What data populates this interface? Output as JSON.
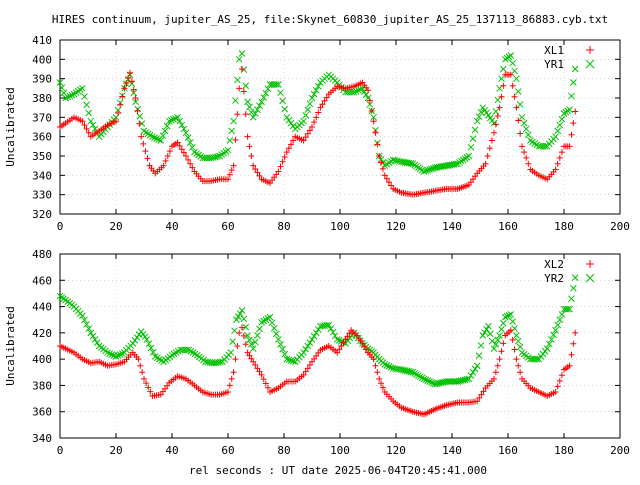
{
  "title": "HIRES continuum, jupiter_AS_25, file:Skynet_60830_jupiter_AS_25_137113_86883.cyb.txt",
  "xlabel": "rel seconds : UT date 2025-06-04T20:45:41.000",
  "colors": {
    "red": "#ff0000",
    "green": "#00c000"
  },
  "chart_data": [
    {
      "type": "scatter",
      "title": "HIRES continuum, jupiter_AS_25, file:Skynet_60830_jupiter_AS_25_137113_86883.cyb.txt",
      "xlabel": "",
      "ylabel": "Uncalibrated",
      "xlim": [
        0,
        200
      ],
      "ylim": [
        320,
        410
      ],
      "xticks": [
        0,
        20,
        40,
        60,
        80,
        100,
        120,
        140,
        160,
        180,
        200
      ],
      "yticks": [
        320,
        330,
        340,
        350,
        360,
        370,
        380,
        390,
        400,
        410
      ],
      "grid": true,
      "legend": "top-right",
      "series": [
        {
          "name": "XL1",
          "color": "#ff0000",
          "marker": "plus",
          "points": [
            [
              0,
              365
            ],
            [
              2,
              367
            ],
            [
              5,
              370
            ],
            [
              8,
              368
            ],
            [
              11,
              360
            ],
            [
              14,
              363
            ],
            [
              17,
              366
            ],
            [
              20,
              368
            ],
            [
              23,
              385
            ],
            [
              25,
              393
            ],
            [
              27,
              380
            ],
            [
              29,
              360
            ],
            [
              32,
              345
            ],
            [
              34,
              341
            ],
            [
              37,
              345
            ],
            [
              40,
              355
            ],
            [
              42,
              357
            ],
            [
              45,
              350
            ],
            [
              48,
              342
            ],
            [
              51,
              337
            ],
            [
              54,
              337
            ],
            [
              57,
              338
            ],
            [
              60,
              338
            ],
            [
              62,
              345
            ],
            [
              64,
              385
            ],
            [
              65,
              395
            ],
            [
              67,
              360
            ],
            [
              69,
              345
            ],
            [
              72,
              338
            ],
            [
              75,
              336
            ],
            [
              78,
              342
            ],
            [
              81,
              352
            ],
            [
              84,
              360
            ],
            [
              87,
              358
            ],
            [
              90,
              365
            ],
            [
              93,
              375
            ],
            [
              96,
              382
            ],
            [
              99,
              386
            ],
            [
              102,
              385
            ],
            [
              105,
              386
            ],
            [
              108,
              388
            ],
            [
              110,
              384
            ],
            [
              112,
              368
            ],
            [
              114,
              350
            ],
            [
              116,
              340
            ],
            [
              119,
              333
            ],
            [
              122,
              331
            ],
            [
              126,
              330
            ],
            [
              130,
              331
            ],
            [
              134,
              332
            ],
            [
              138,
              333
            ],
            [
              142,
              333
            ],
            [
              146,
              335
            ],
            [
              149,
              341
            ],
            [
              152,
              346
            ],
            [
              155,
              362
            ],
            [
              157,
              375
            ],
            [
              159,
              392
            ],
            [
              161,
              392
            ],
            [
              163,
              375
            ],
            [
              165,
              355
            ],
            [
              168,
              343
            ],
            [
              171,
              340
            ],
            [
              174,
              338
            ],
            [
              177,
              343
            ],
            [
              180,
              355
            ],
            [
              182,
              355
            ],
            [
              184,
              373
            ]
          ]
        },
        {
          "name": "YR1",
          "color": "#00c000",
          "marker": "cross",
          "points": [
            [
              0,
              388
            ],
            [
              2,
              380
            ],
            [
              5,
              382
            ],
            [
              8,
              385
            ],
            [
              11,
              368
            ],
            [
              14,
              360
            ],
            [
              17,
              365
            ],
            [
              20,
              370
            ],
            [
              23,
              385
            ],
            [
              25,
              392
            ],
            [
              27,
              378
            ],
            [
              30,
              363
            ],
            [
              33,
              360
            ],
            [
              36,
              358
            ],
            [
              39,
              368
            ],
            [
              42,
              370
            ],
            [
              45,
              362
            ],
            [
              48,
              352
            ],
            [
              51,
              349
            ],
            [
              54,
              349
            ],
            [
              57,
              350
            ],
            [
              60,
              353
            ],
            [
              62,
              368
            ],
            [
              64,
              400
            ],
            [
              65,
              403
            ],
            [
              67,
              378
            ],
            [
              69,
              370
            ],
            [
              72,
              378
            ],
            [
              75,
              387
            ],
            [
              78,
              387
            ],
            [
              81,
              370
            ],
            [
              84,
              364
            ],
            [
              87,
              368
            ],
            [
              90,
              380
            ],
            [
              93,
              388
            ],
            [
              96,
              392
            ],
            [
              99,
              388
            ],
            [
              102,
              383
            ],
            [
              105,
              383
            ],
            [
              108,
              385
            ],
            [
              110,
              380
            ],
            [
              112,
              370
            ],
            [
              114,
              350
            ],
            [
              116,
              345
            ],
            [
              119,
              348
            ],
            [
              122,
              347
            ],
            [
              126,
              346
            ],
            [
              130,
              342
            ],
            [
              134,
              344
            ],
            [
              138,
              345
            ],
            [
              142,
              346
            ],
            [
              146,
              350
            ],
            [
              149,
              368
            ],
            [
              151,
              375
            ],
            [
              153,
              371
            ],
            [
              155,
              367
            ],
            [
              157,
              385
            ],
            [
              159,
              400
            ],
            [
              161,
              402
            ],
            [
              163,
              390
            ],
            [
              165,
              370
            ],
            [
              168,
              358
            ],
            [
              171,
              355
            ],
            [
              174,
              355
            ],
            [
              177,
              360
            ],
            [
              180,
              372
            ],
            [
              182,
              374
            ],
            [
              184,
              395
            ]
          ]
        }
      ]
    },
    {
      "type": "scatter",
      "xlabel": "rel seconds : UT date 2025-06-04T20:45:41.000",
      "ylabel": "Uncalibrated",
      "xlim": [
        0,
        200
      ],
      "ylim": [
        340,
        480
      ],
      "xticks": [
        0,
        20,
        40,
        60,
        80,
        100,
        120,
        140,
        160,
        180,
        200
      ],
      "yticks": [
        340,
        360,
        380,
        400,
        420,
        440,
        460,
        480
      ],
      "grid": true,
      "legend": "top-right",
      "series": [
        {
          "name": "XL2",
          "color": "#ff0000",
          "marker": "plus",
          "points": [
            [
              0,
              410
            ],
            [
              2,
              408
            ],
            [
              5,
              405
            ],
            [
              8,
              400
            ],
            [
              11,
              397
            ],
            [
              14,
              398
            ],
            [
              17,
              395
            ],
            [
              20,
              396
            ],
            [
              23,
              398
            ],
            [
              26,
              405
            ],
            [
              28,
              400
            ],
            [
              30,
              385
            ],
            [
              33,
              372
            ],
            [
              36,
              373
            ],
            [
              39,
              382
            ],
            [
              42,
              387
            ],
            [
              45,
              385
            ],
            [
              48,
              380
            ],
            [
              51,
              375
            ],
            [
              54,
              373
            ],
            [
              57,
              373
            ],
            [
              60,
              375
            ],
            [
              62,
              390
            ],
            [
              64,
              420
            ],
            [
              65,
              424
            ],
            [
              67,
              405
            ],
            [
              69,
              398
            ],
            [
              72,
              388
            ],
            [
              75,
              375
            ],
            [
              78,
              378
            ],
            [
              81,
              383
            ],
            [
              84,
              383
            ],
            [
              87,
              388
            ],
            [
              90,
              398
            ],
            [
              93,
              407
            ],
            [
              96,
              410
            ],
            [
              99,
              405
            ],
            [
              102,
              415
            ],
            [
              104,
              422
            ],
            [
              106,
              418
            ],
            [
              108,
              412
            ],
            [
              110,
              405
            ],
            [
              112,
              400
            ],
            [
              114,
              385
            ],
            [
              116,
              375
            ],
            [
              119,
              368
            ],
            [
              122,
              363
            ],
            [
              126,
              360
            ],
            [
              130,
              358
            ],
            [
              134,
              362
            ],
            [
              138,
              365
            ],
            [
              142,
              367
            ],
            [
              146,
              367
            ],
            [
              149,
              368
            ],
            [
              152,
              378
            ],
            [
              155,
              385
            ],
            [
              157,
              400
            ],
            [
              159,
              418
            ],
            [
              161,
              422
            ],
            [
              163,
              400
            ],
            [
              165,
              385
            ],
            [
              168,
              378
            ],
            [
              171,
              375
            ],
            [
              174,
              372
            ],
            [
              177,
              375
            ],
            [
              180,
              392
            ],
            [
              182,
              395
            ],
            [
              184,
              420
            ]
          ]
        },
        {
          "name": "YR2",
          "color": "#00c000",
          "marker": "cross",
          "points": [
            [
              0,
              448
            ],
            [
              2,
              445
            ],
            [
              5,
              440
            ],
            [
              8,
              433
            ],
            [
              11,
              420
            ],
            [
              14,
              410
            ],
            [
              17,
              405
            ],
            [
              20,
              402
            ],
            [
              23,
              405
            ],
            [
              26,
              412
            ],
            [
              29,
              421
            ],
            [
              31,
              415
            ],
            [
              34,
              402
            ],
            [
              37,
              398
            ],
            [
              40,
              403
            ],
            [
              43,
              407
            ],
            [
              46,
              407
            ],
            [
              49,
              403
            ],
            [
              52,
              398
            ],
            [
              55,
              397
            ],
            [
              58,
              398
            ],
            [
              61,
              405
            ],
            [
              63,
              430
            ],
            [
              65,
              437
            ],
            [
              67,
              418
            ],
            [
              69,
              408
            ],
            [
              72,
              428
            ],
            [
              75,
              432
            ],
            [
              78,
              415
            ],
            [
              81,
              400
            ],
            [
              84,
              398
            ],
            [
              87,
              405
            ],
            [
              90,
              415
            ],
            [
              93,
              425
            ],
            [
              96,
              426
            ],
            [
              99,
              415
            ],
            [
              102,
              412
            ],
            [
              105,
              420
            ],
            [
              108,
              412
            ],
            [
              110,
              408
            ],
            [
              112,
              405
            ],
            [
              114,
              400
            ],
            [
              116,
              396
            ],
            [
              119,
              393
            ],
            [
              122,
              392
            ],
            [
              126,
              390
            ],
            [
              130,
              385
            ],
            [
              134,
              381
            ],
            [
              138,
              383
            ],
            [
              142,
              383
            ],
            [
              146,
              385
            ],
            [
              149,
              395
            ],
            [
              151,
              418
            ],
            [
              153,
              425
            ],
            [
              155,
              408
            ],
            [
              157,
              418
            ],
            [
              159,
              432
            ],
            [
              161,
              434
            ],
            [
              163,
              418
            ],
            [
              165,
              405
            ],
            [
              168,
              400
            ],
            [
              171,
              400
            ],
            [
              174,
              408
            ],
            [
              177,
              422
            ],
            [
              180,
              438
            ],
            [
              182,
              438
            ],
            [
              184,
              462
            ]
          ]
        }
      ]
    }
  ]
}
